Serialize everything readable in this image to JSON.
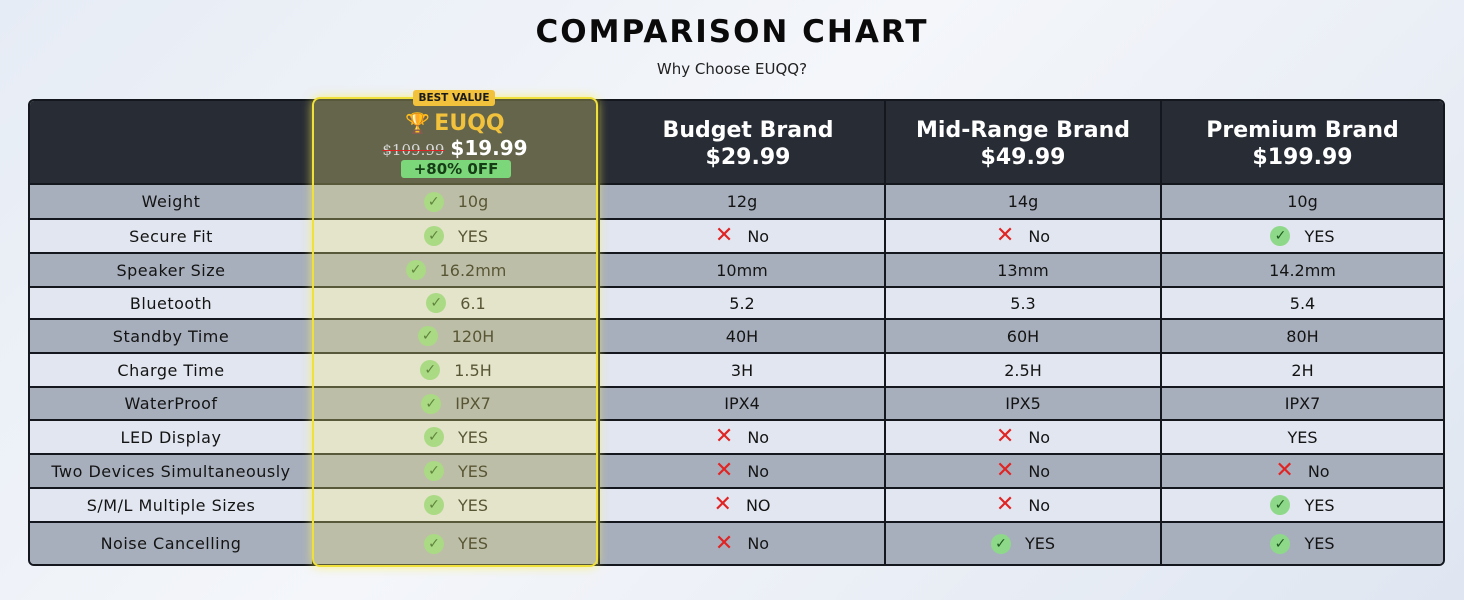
{
  "header": {
    "title": "COMPARISON CHART",
    "subtitle": "Why Choose EUQQ?"
  },
  "euqq": {
    "badge": "BEST VALUE",
    "name": "EUQQ",
    "old_price": "$109.99",
    "price": "$19.99",
    "discount": "+80% 0FF"
  },
  "brands": [
    {
      "name": "Budget Brand",
      "price": "$29.99"
    },
    {
      "name": "Mid-Range Brand",
      "price": "$49.99"
    },
    {
      "name": "Premium Brand",
      "price": "$199.99"
    }
  ],
  "colors": {
    "header_bg": "#272c35",
    "gold": "#f2c23c",
    "check_green": "#8ed88a",
    "cross_red": "#e02424"
  },
  "rows": [
    {
      "feature": "Weight",
      "cells": [
        {
          "text": "10g",
          "mark": "check"
        },
        {
          "text": "12g",
          "mark": ""
        },
        {
          "text": "14g",
          "mark": ""
        },
        {
          "text": "10g",
          "mark": ""
        }
      ]
    },
    {
      "feature": "Secure Fit",
      "cells": [
        {
          "text": "YES",
          "mark": "check"
        },
        {
          "text": "No",
          "mark": "cross"
        },
        {
          "text": "No",
          "mark": "cross"
        },
        {
          "text": "YES",
          "mark": "check"
        }
      ]
    },
    {
      "feature": "Speaker Size",
      "cells": [
        {
          "text": "16.2mm",
          "mark": "check"
        },
        {
          "text": "10mm",
          "mark": ""
        },
        {
          "text": "13mm",
          "mark": ""
        },
        {
          "text": "14.2mm",
          "mark": ""
        }
      ]
    },
    {
      "feature": "Bluetooth",
      "cells": [
        {
          "text": "6.1",
          "mark": "check"
        },
        {
          "text": "5.2",
          "mark": ""
        },
        {
          "text": "5.3",
          "mark": ""
        },
        {
          "text": "5.4",
          "mark": ""
        }
      ]
    },
    {
      "feature": "Standby Time",
      "cells": [
        {
          "text": "120H",
          "mark": "check"
        },
        {
          "text": "40H",
          "mark": ""
        },
        {
          "text": "60H",
          "mark": ""
        },
        {
          "text": "80H",
          "mark": ""
        }
      ]
    },
    {
      "feature": "Charge Time",
      "cells": [
        {
          "text": "1.5H",
          "mark": "check"
        },
        {
          "text": "3H",
          "mark": ""
        },
        {
          "text": "2.5H",
          "mark": ""
        },
        {
          "text": "2H",
          "mark": ""
        }
      ]
    },
    {
      "feature": "WaterProof",
      "cells": [
        {
          "text": "IPX7",
          "mark": "check"
        },
        {
          "text": "IPX4",
          "mark": ""
        },
        {
          "text": "IPX5",
          "mark": ""
        },
        {
          "text": "IPX7",
          "mark": ""
        }
      ]
    },
    {
      "feature": "LED Display",
      "cells": [
        {
          "text": "YES",
          "mark": "check"
        },
        {
          "text": "No",
          "mark": "cross"
        },
        {
          "text": "No",
          "mark": "cross"
        },
        {
          "text": "YES",
          "mark": ""
        }
      ]
    },
    {
      "feature": "Two Devices Simultaneously",
      "cells": [
        {
          "text": "YES",
          "mark": "check"
        },
        {
          "text": "No",
          "mark": "cross"
        },
        {
          "text": "No",
          "mark": "cross"
        },
        {
          "text": "No",
          "mark": "cross"
        }
      ]
    },
    {
      "feature": "S/M/L Multiple Sizes",
      "cells": [
        {
          "text": "YES",
          "mark": "check"
        },
        {
          "text": "NO",
          "mark": "cross"
        },
        {
          "text": "No",
          "mark": "cross"
        },
        {
          "text": "YES",
          "mark": "check"
        }
      ]
    },
    {
      "feature": "Noise Cancelling",
      "cells": [
        {
          "text": "YES",
          "mark": "check"
        },
        {
          "text": "No",
          "mark": "cross"
        },
        {
          "text": "YES",
          "mark": "check"
        },
        {
          "text": "YES",
          "mark": "check"
        }
      ]
    }
  ]
}
